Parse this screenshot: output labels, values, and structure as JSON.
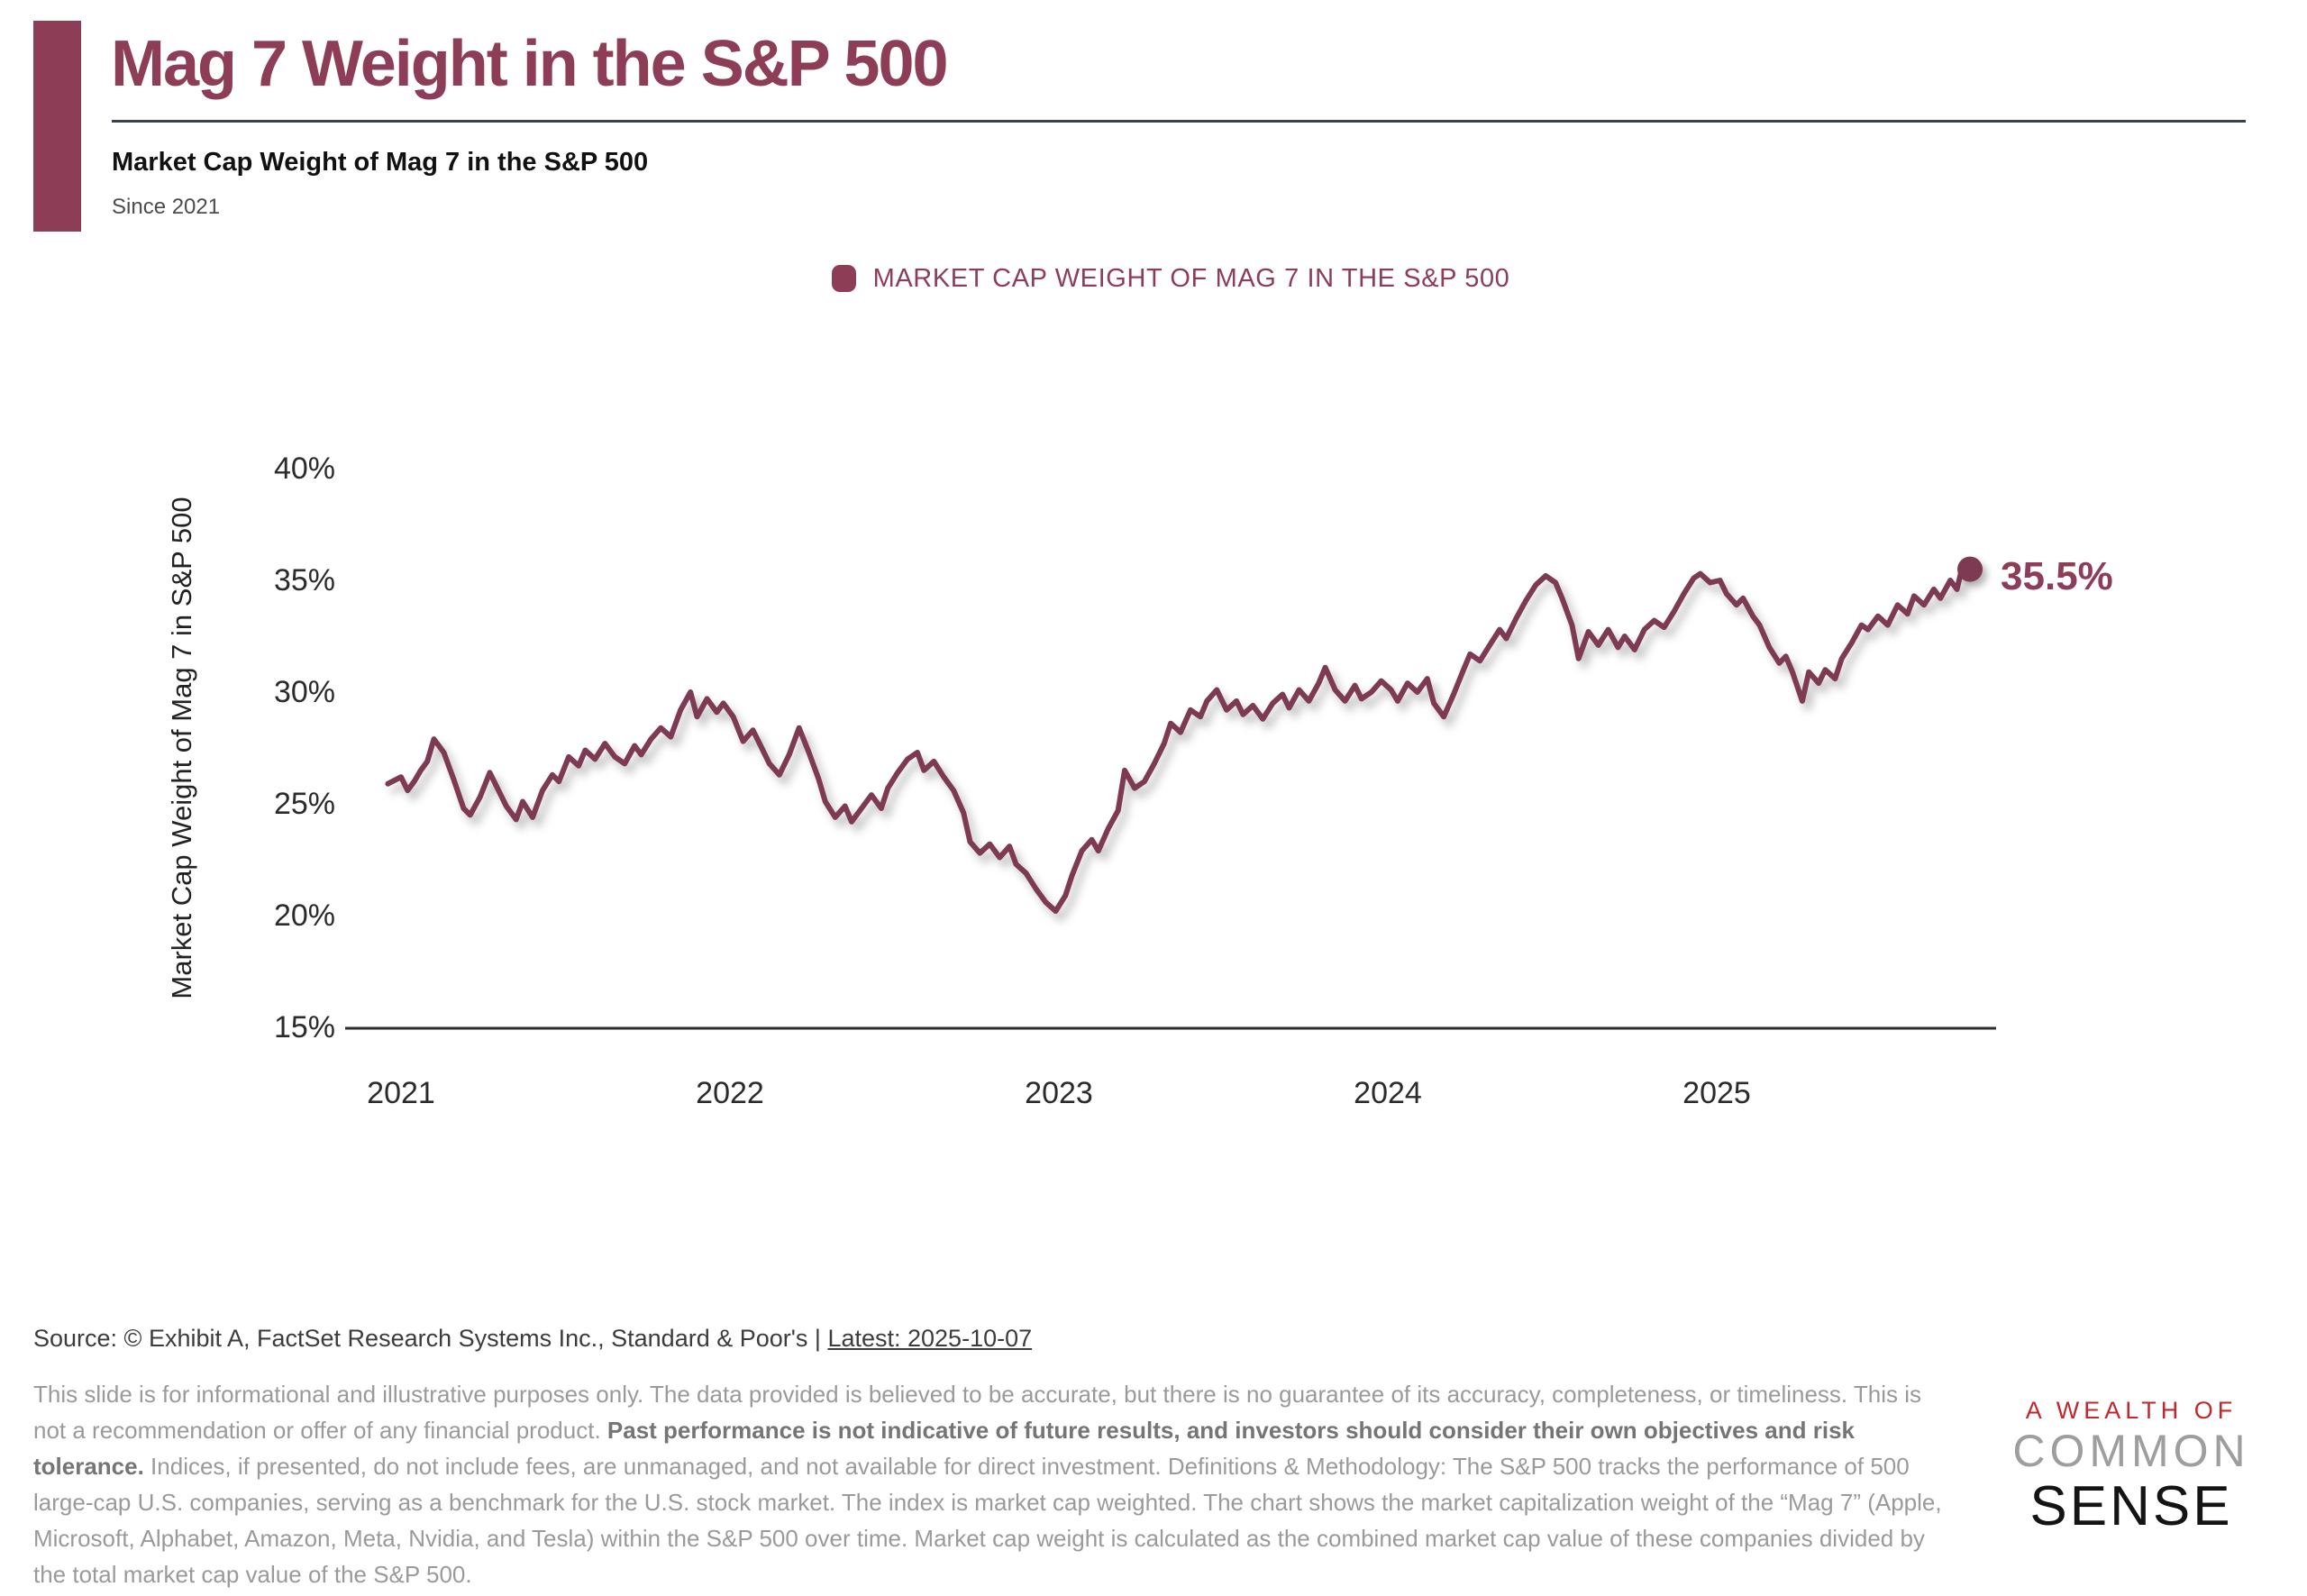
{
  "header": {
    "title": "Mag 7 Weight in the S&P 500",
    "subtitle": "Market Cap Weight of Mag 7 in the S&P 500",
    "period_label": "Since 2021"
  },
  "legend": {
    "label": "MARKET CAP WEIGHT OF MAG 7 IN THE S&P 500"
  },
  "chart_data": {
    "type": "line",
    "title": "Market Cap Weight of Mag 7 in the S&P 500",
    "xlabel": "",
    "ylabel": "Market Cap Weight of Mag 7 in S&P 500",
    "x_tick_labels": [
      "2021",
      "2022",
      "2023",
      "2024",
      "2025"
    ],
    "x_tick_values": [
      2021,
      2022,
      2023,
      2024,
      2025
    ],
    "y_tick_labels": [
      "40%",
      "35%",
      "30%",
      "25%",
      "20%",
      "15%"
    ],
    "y_tick_values": [
      40,
      35,
      30,
      25,
      20,
      15
    ],
    "ylim": [
      15,
      40
    ],
    "xlim": [
      2020.83,
      2025.85
    ],
    "grid": false,
    "legend_position": "top-center",
    "end_label": "35.5%",
    "last_value": 35.5,
    "last_date": "2025-10-07",
    "series": [
      {
        "name": "Market Cap Weight of Mag 7 in the S&P 500",
        "color": "#7d3a52",
        "points": [
          [
            2020.96,
            25.9
          ],
          [
            2021.0,
            26.2
          ],
          [
            2021.02,
            25.6
          ],
          [
            2021.04,
            26.0
          ],
          [
            2021.06,
            26.5
          ],
          [
            2021.08,
            26.9
          ],
          [
            2021.1,
            27.9
          ],
          [
            2021.13,
            27.3
          ],
          [
            2021.16,
            26.1
          ],
          [
            2021.19,
            24.8
          ],
          [
            2021.21,
            24.5
          ],
          [
            2021.24,
            25.3
          ],
          [
            2021.27,
            26.4
          ],
          [
            2021.29,
            25.8
          ],
          [
            2021.32,
            24.9
          ],
          [
            2021.35,
            24.3
          ],
          [
            2021.37,
            25.1
          ],
          [
            2021.4,
            24.4
          ],
          [
            2021.43,
            25.6
          ],
          [
            2021.46,
            26.3
          ],
          [
            2021.48,
            26.0
          ],
          [
            2021.51,
            27.1
          ],
          [
            2021.54,
            26.7
          ],
          [
            2021.56,
            27.4
          ],
          [
            2021.59,
            27.0
          ],
          [
            2021.62,
            27.7
          ],
          [
            2021.65,
            27.1
          ],
          [
            2021.68,
            26.8
          ],
          [
            2021.71,
            27.6
          ],
          [
            2021.73,
            27.2
          ],
          [
            2021.76,
            27.9
          ],
          [
            2021.79,
            28.4
          ],
          [
            2021.82,
            28.0
          ],
          [
            2021.85,
            29.2
          ],
          [
            2021.88,
            30.0
          ],
          [
            2021.9,
            28.9
          ],
          [
            2021.93,
            29.7
          ],
          [
            2021.96,
            29.1
          ],
          [
            2021.98,
            29.5
          ],
          [
            2022.01,
            28.9
          ],
          [
            2022.04,
            27.8
          ],
          [
            2022.07,
            28.3
          ],
          [
            2022.1,
            27.4
          ],
          [
            2022.12,
            26.8
          ],
          [
            2022.15,
            26.3
          ],
          [
            2022.18,
            27.2
          ],
          [
            2022.21,
            28.4
          ],
          [
            2022.24,
            27.3
          ],
          [
            2022.27,
            26.1
          ],
          [
            2022.29,
            25.1
          ],
          [
            2022.32,
            24.4
          ],
          [
            2022.35,
            24.9
          ],
          [
            2022.37,
            24.2
          ],
          [
            2022.4,
            24.8
          ],
          [
            2022.43,
            25.4
          ],
          [
            2022.46,
            24.8
          ],
          [
            2022.48,
            25.7
          ],
          [
            2022.51,
            26.4
          ],
          [
            2022.54,
            27.0
          ],
          [
            2022.57,
            27.3
          ],
          [
            2022.59,
            26.5
          ],
          [
            2022.62,
            26.9
          ],
          [
            2022.65,
            26.2
          ],
          [
            2022.68,
            25.6
          ],
          [
            2022.71,
            24.6
          ],
          [
            2022.73,
            23.3
          ],
          [
            2022.76,
            22.8
          ],
          [
            2022.79,
            23.2
          ],
          [
            2022.82,
            22.6
          ],
          [
            2022.85,
            23.1
          ],
          [
            2022.87,
            22.3
          ],
          [
            2022.9,
            21.9
          ],
          [
            2022.93,
            21.2
          ],
          [
            2022.96,
            20.6
          ],
          [
            2022.99,
            20.2
          ],
          [
            2023.02,
            20.9
          ],
          [
            2023.04,
            21.8
          ],
          [
            2023.07,
            22.9
          ],
          [
            2023.1,
            23.4
          ],
          [
            2023.12,
            22.9
          ],
          [
            2023.15,
            23.9
          ],
          [
            2023.18,
            24.7
          ],
          [
            2023.2,
            26.5
          ],
          [
            2023.23,
            25.7
          ],
          [
            2023.26,
            26.0
          ],
          [
            2023.29,
            26.8
          ],
          [
            2023.32,
            27.7
          ],
          [
            2023.34,
            28.6
          ],
          [
            2023.37,
            28.2
          ],
          [
            2023.4,
            29.2
          ],
          [
            2023.43,
            28.9
          ],
          [
            2023.45,
            29.6
          ],
          [
            2023.48,
            30.1
          ],
          [
            2023.51,
            29.2
          ],
          [
            2023.54,
            29.6
          ],
          [
            2023.56,
            29.0
          ],
          [
            2023.59,
            29.4
          ],
          [
            2023.62,
            28.8
          ],
          [
            2023.65,
            29.5
          ],
          [
            2023.68,
            29.9
          ],
          [
            2023.7,
            29.3
          ],
          [
            2023.73,
            30.1
          ],
          [
            2023.76,
            29.6
          ],
          [
            2023.79,
            30.4
          ],
          [
            2023.81,
            31.1
          ],
          [
            2023.84,
            30.1
          ],
          [
            2023.87,
            29.6
          ],
          [
            2023.9,
            30.3
          ],
          [
            2023.92,
            29.7
          ],
          [
            2023.95,
            30.0
          ],
          [
            2023.98,
            30.5
          ],
          [
            2024.01,
            30.1
          ],
          [
            2024.03,
            29.6
          ],
          [
            2024.06,
            30.4
          ],
          [
            2024.09,
            30.0
          ],
          [
            2024.12,
            30.6
          ],
          [
            2024.14,
            29.5
          ],
          [
            2024.17,
            28.9
          ],
          [
            2024.2,
            29.9
          ],
          [
            2024.23,
            31.0
          ],
          [
            2024.25,
            31.7
          ],
          [
            2024.28,
            31.4
          ],
          [
            2024.31,
            32.1
          ],
          [
            2024.34,
            32.8
          ],
          [
            2024.36,
            32.4
          ],
          [
            2024.39,
            33.3
          ],
          [
            2024.42,
            34.1
          ],
          [
            2024.45,
            34.8
          ],
          [
            2024.48,
            35.2
          ],
          [
            2024.51,
            34.9
          ],
          [
            2024.53,
            34.2
          ],
          [
            2024.56,
            33.0
          ],
          [
            2024.58,
            31.5
          ],
          [
            2024.61,
            32.7
          ],
          [
            2024.64,
            32.1
          ],
          [
            2024.67,
            32.8
          ],
          [
            2024.7,
            32.0
          ],
          [
            2024.72,
            32.5
          ],
          [
            2024.75,
            31.9
          ],
          [
            2024.78,
            32.8
          ],
          [
            2024.81,
            33.2
          ],
          [
            2024.84,
            32.9
          ],
          [
            2024.87,
            33.6
          ],
          [
            2024.9,
            34.4
          ],
          [
            2024.93,
            35.1
          ],
          [
            2024.95,
            35.3
          ],
          [
            2024.98,
            34.9
          ],
          [
            2025.01,
            35.0
          ],
          [
            2025.03,
            34.4
          ],
          [
            2025.06,
            33.9
          ],
          [
            2025.08,
            34.2
          ],
          [
            2025.11,
            33.4
          ],
          [
            2025.13,
            33.0
          ],
          [
            2025.16,
            32.0
          ],
          [
            2025.19,
            31.3
          ],
          [
            2025.21,
            31.6
          ],
          [
            2025.23,
            30.9
          ],
          [
            2025.26,
            29.6
          ],
          [
            2025.28,
            30.9
          ],
          [
            2025.31,
            30.4
          ],
          [
            2025.33,
            31.0
          ],
          [
            2025.36,
            30.6
          ],
          [
            2025.38,
            31.5
          ],
          [
            2025.41,
            32.2
          ],
          [
            2025.44,
            33.0
          ],
          [
            2025.46,
            32.8
          ],
          [
            2025.49,
            33.4
          ],
          [
            2025.52,
            33.0
          ],
          [
            2025.55,
            33.9
          ],
          [
            2025.58,
            33.5
          ],
          [
            2025.6,
            34.3
          ],
          [
            2025.63,
            33.9
          ],
          [
            2025.66,
            34.6
          ],
          [
            2025.68,
            34.2
          ],
          [
            2025.71,
            35.0
          ],
          [
            2025.73,
            34.6
          ],
          [
            2025.75,
            35.8
          ],
          [
            2025.77,
            35.5
          ]
        ]
      }
    ]
  },
  "footer": {
    "source_prefix": "Source: © Exhibit A, FactSet Research Systems Inc., Standard & Poor's | ",
    "source_latest": "Latest: 2025-10-07",
    "disclaimer_segments": {
      "0": {
        "text": "This slide is for informational and illustrative purposes only. The data provided is believed to be accurate, but there is no guarantee of its accuracy, completeness, or timeliness. This is not a recommendation or offer of any financial product. "
      },
      "1": {
        "text": "Past performance is not indicative of future results, and investors should consider their own objectives and risk tolerance."
      },
      "2": {
        "text": " Indices, if presented, do not include fees, are unmanaged, and not available for direct investment. Definitions & Methodology: The S&P 500 tracks the performance of 500 large-cap U.S. companies, serving as a benchmark for the U.S. stock market. The index is market cap weighted. The chart shows the market capitalization weight of the “Mag 7” (Apple, Microsoft, Alphabet, Amazon, Meta, Nvidia, and Tesla) within the S&P 500 over time. Market cap weight is calculated as the combined market cap value of these companies divided by the total market cap value of the S&P 500."
      }
    }
  },
  "logo": {
    "line1": "A WEALTH OF",
    "line2": "COMMON",
    "line3": "SENSE"
  },
  "colors": {
    "accent_maroon": "#8e3d57",
    "line_maroon": "#7d3a52",
    "rule_slate": "#3a4150",
    "logo_red": "#c1272d",
    "logo_gray": "#9e9e9e",
    "disclaimer_gray": "#9a9a9a"
  }
}
